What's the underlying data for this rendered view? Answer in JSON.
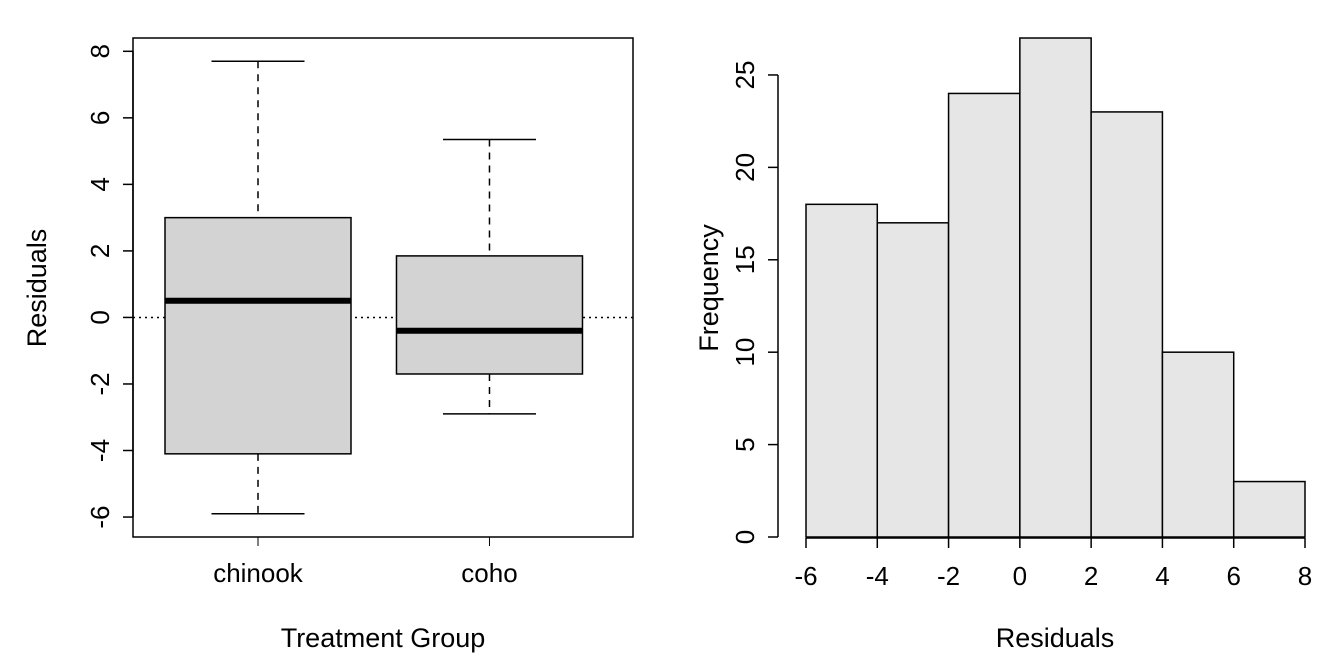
{
  "chart_data": [
    {
      "type": "box",
      "xlabel": "Treatment Group",
      "ylabel": "Residuals",
      "categories": [
        "chinook",
        "coho"
      ],
      "boxes": [
        {
          "name": "chinook",
          "min": -5.9,
          "q1": -4.1,
          "median": 0.5,
          "q3": 3.0,
          "max": 7.7
        },
        {
          "name": "coho",
          "min": -2.9,
          "q1": -1.7,
          "median": -0.4,
          "q3": 1.85,
          "max": 5.35
        }
      ],
      "reference_line": 0,
      "ylim": [
        -6.6,
        8.4
      ],
      "yticks": [
        -6,
        -4,
        -2,
        0,
        2,
        4,
        6,
        8
      ],
      "ytick_labels": [
        "-6",
        "-4",
        "-2",
        "0",
        "2",
        "4",
        "6",
        "8"
      ],
      "box_color": "#d3d3d3",
      "grid": false
    },
    {
      "type": "histogram",
      "xlabel": "Residuals",
      "ylabel": "Frequency",
      "bins": [
        {
          "from": -6,
          "to": -4,
          "count": 18
        },
        {
          "from": -4,
          "to": -2,
          "count": 17
        },
        {
          "from": -2,
          "to": 0,
          "count": 24
        },
        {
          "from": 0,
          "to": 2,
          "count": 27
        },
        {
          "from": 2,
          "to": 4,
          "count": 23
        },
        {
          "from": 4,
          "to": 6,
          "count": 10
        },
        {
          "from": 6,
          "to": 8,
          "count": 3
        }
      ],
      "xlim": [
        -6,
        8
      ],
      "ylim": [
        0,
        27
      ],
      "xticks": [
        -6,
        -4,
        -2,
        0,
        2,
        4,
        6,
        8
      ],
      "xtick_labels": [
        "-6",
        "-4",
        "-2",
        "0",
        "2",
        "4",
        "6",
        "8"
      ],
      "yticks": [
        0,
        5,
        10,
        15,
        20,
        25
      ],
      "ytick_labels": [
        "0",
        "5",
        "10",
        "15",
        "20",
        "25"
      ],
      "bar_color": "#e6e6e6",
      "grid": false
    }
  ]
}
